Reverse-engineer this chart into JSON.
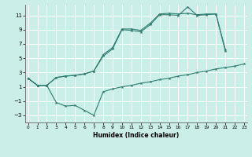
{
  "xlabel": "Humidex (Indice chaleur)",
  "bg_color": "#cceee8",
  "line_color": "#2e7d72",
  "grid_color": "#ffffff",
  "xlim": [
    -0.3,
    23.3
  ],
  "ylim": [
    -4,
    12.5
  ],
  "xticks": [
    0,
    1,
    2,
    3,
    4,
    5,
    6,
    7,
    8,
    9,
    10,
    11,
    12,
    13,
    14,
    15,
    16,
    17,
    18,
    19,
    20,
    21,
    22,
    23
  ],
  "yticks": [
    -3,
    -1,
    1,
    3,
    5,
    7,
    9,
    11
  ],
  "line1_x": [
    0,
    1,
    2,
    3,
    4,
    5,
    6,
    7,
    8,
    9,
    10,
    11,
    12,
    13,
    14,
    15,
    16,
    17,
    18,
    19,
    20,
    21,
    22,
    23
  ],
  "line1_y": [
    2.2,
    1.2,
    1.2,
    -1.2,
    -1.7,
    -1.6,
    -2.3,
    -3.0,
    0.3,
    0.7,
    1.0,
    1.2,
    1.5,
    1.7,
    2.0,
    2.2,
    2.5,
    2.7,
    3.0,
    3.2,
    3.5,
    3.7,
    3.9,
    4.2
  ],
  "line2_x": [
    0,
    1,
    2,
    3,
    4,
    5,
    6,
    7,
    8,
    9,
    10,
    11,
    12,
    13,
    14,
    15,
    16,
    17,
    18,
    19,
    20,
    21
  ],
  "line2_y": [
    2.2,
    1.2,
    1.2,
    2.3,
    2.5,
    2.6,
    2.8,
    3.2,
    5.5,
    6.5,
    9.1,
    9.1,
    8.9,
    9.9,
    11.2,
    11.3,
    11.2,
    11.3,
    11.1,
    11.2,
    11.2,
    6.0
  ],
  "line3_x": [
    0,
    1,
    2,
    3,
    4,
    5,
    6,
    7,
    8,
    9,
    10,
    11,
    12,
    13,
    14,
    15,
    16,
    17,
    18,
    19,
    20,
    21
  ],
  "line3_y": [
    2.2,
    1.2,
    1.2,
    2.3,
    2.5,
    2.6,
    2.8,
    3.2,
    5.3,
    6.3,
    9.0,
    8.9,
    8.7,
    9.7,
    11.1,
    11.1,
    11.0,
    12.2,
    11.0,
    11.1,
    11.2,
    6.2
  ]
}
